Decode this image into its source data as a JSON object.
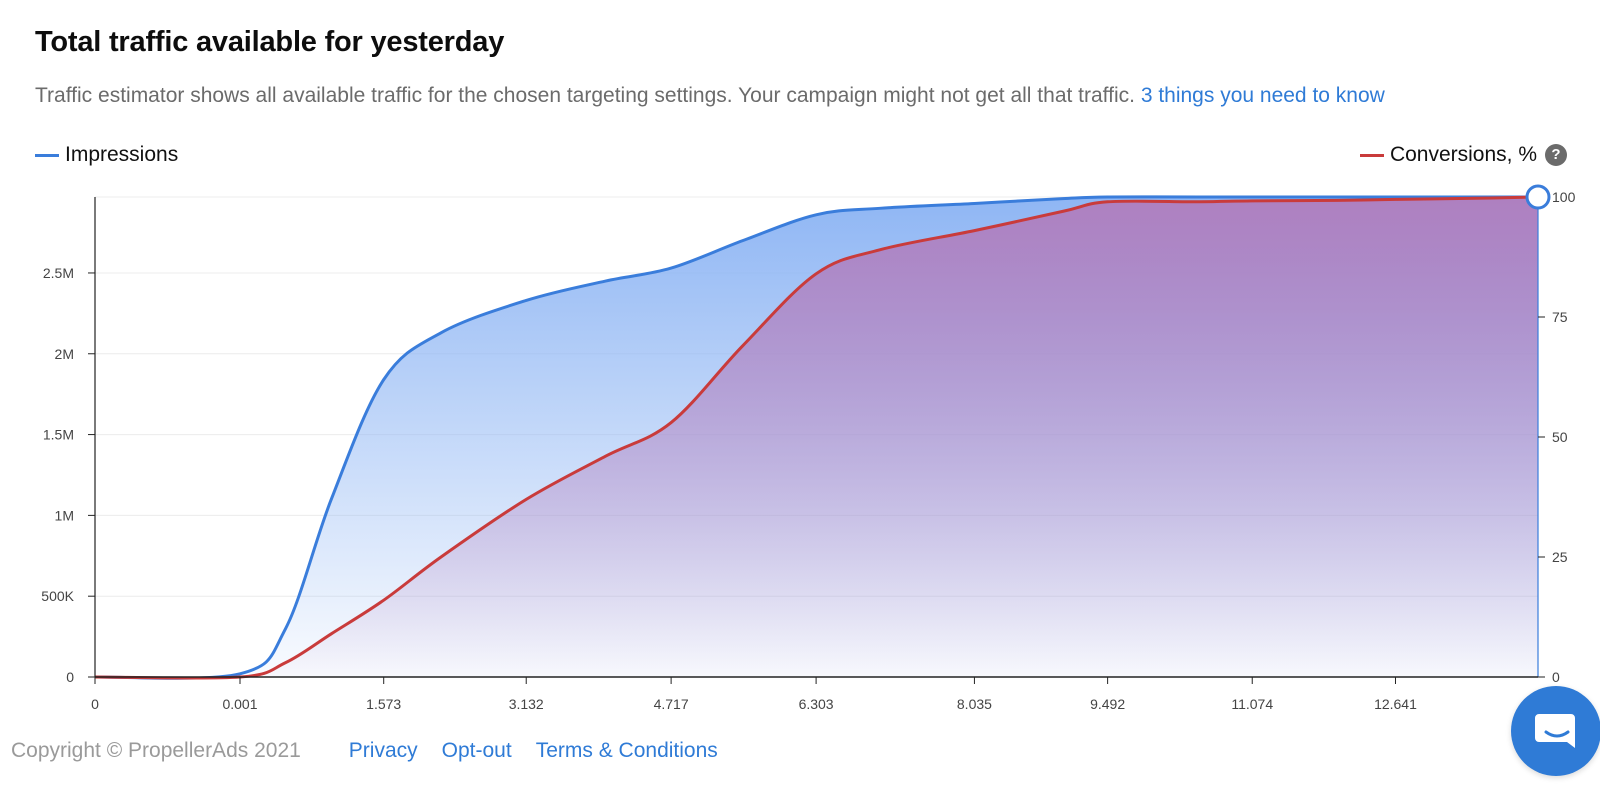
{
  "header": {
    "title": "Total traffic available for yesterday",
    "subtitle": "Traffic estimator shows all available traffic for the chosen targeting settings. Your campaign might not get all that traffic.",
    "link": "3 things you need to know"
  },
  "legend": {
    "impressions": "Impressions",
    "conversions": "Conversions, %",
    "help_icon": "?"
  },
  "colors": {
    "impressions": "#3a7ddb",
    "conversions": "#c93b3b",
    "impressions_fill": "#8fb6f4",
    "conversions_fill": "#b07dbd"
  },
  "chart_data": {
    "type": "area",
    "x": [
      0,
      0.001,
      0.5,
      1.0,
      1.573,
      2.2,
      3.132,
      4.0,
      4.717,
      5.5,
      6.303,
      7.0,
      8.035,
      9.0,
      9.492,
      10.5,
      11.074,
      12.0,
      12.641,
      13.7,
      14.2
    ],
    "x_tick_labels": [
      "0",
      "0.001",
      "1.573",
      "3.132",
      "4.717",
      "6.303",
      "8.035",
      "9.492",
      "11.074",
      "12.641"
    ],
    "series": [
      {
        "name": "Impressions",
        "axis": "left",
        "values": [
          0,
          20000,
          300000,
          1100000,
          1840000,
          2130000,
          2330000,
          2450000,
          2530000,
          2700000,
          2860000,
          2900000,
          2930000,
          2960000,
          2970000,
          2970000,
          2970000,
          2970000,
          2970000,
          2970000,
          2970000
        ]
      },
      {
        "name": "Conversions, %",
        "axis": "right",
        "values": [
          0,
          0,
          3,
          9,
          16,
          25,
          37,
          46,
          53,
          69,
          84,
          89,
          93,
          97,
          99,
          99,
          99.2,
          99.3,
          99.5,
          99.8,
          100
        ]
      }
    ],
    "y_left": {
      "ticks": [
        0,
        500000,
        1000000,
        1500000,
        2000000,
        2500000
      ],
      "tick_labels": [
        "0",
        "500K",
        "1M",
        "1.5M",
        "2M",
        "2.5M"
      ],
      "range": [
        0,
        2970000
      ]
    },
    "y_right": {
      "ticks": [
        0,
        25,
        50,
        75,
        100
      ],
      "tick_labels": [
        "0",
        "25",
        "50",
        "75",
        "100"
      ],
      "range": [
        0,
        100
      ]
    },
    "legend_position": "top"
  },
  "footer": {
    "copyright": "Copyright © PropellerAds 2021",
    "links": [
      "Privacy",
      "Opt-out",
      "Terms & Conditions"
    ]
  }
}
